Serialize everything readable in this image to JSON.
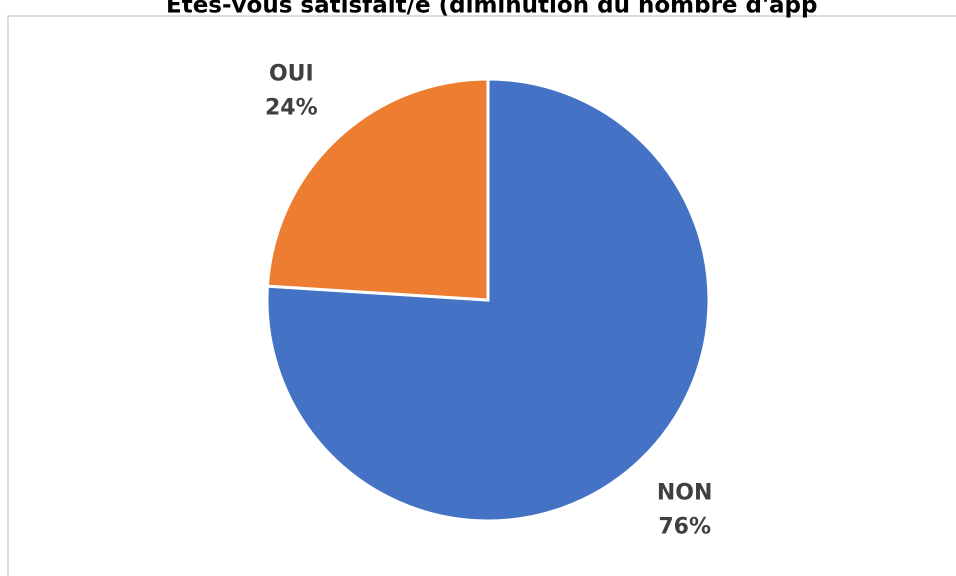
{
  "chart_data": {
    "type": "pie",
    "title": "Etes-vous satisfait/e (diminution du nombre d'app",
    "categories": [
      "NON",
      "OUI"
    ],
    "values": [
      76,
      24
    ],
    "value_labels": [
      "76%",
      "24%"
    ],
    "colors": [
      "#4472c4",
      "#ed7d31"
    ]
  }
}
